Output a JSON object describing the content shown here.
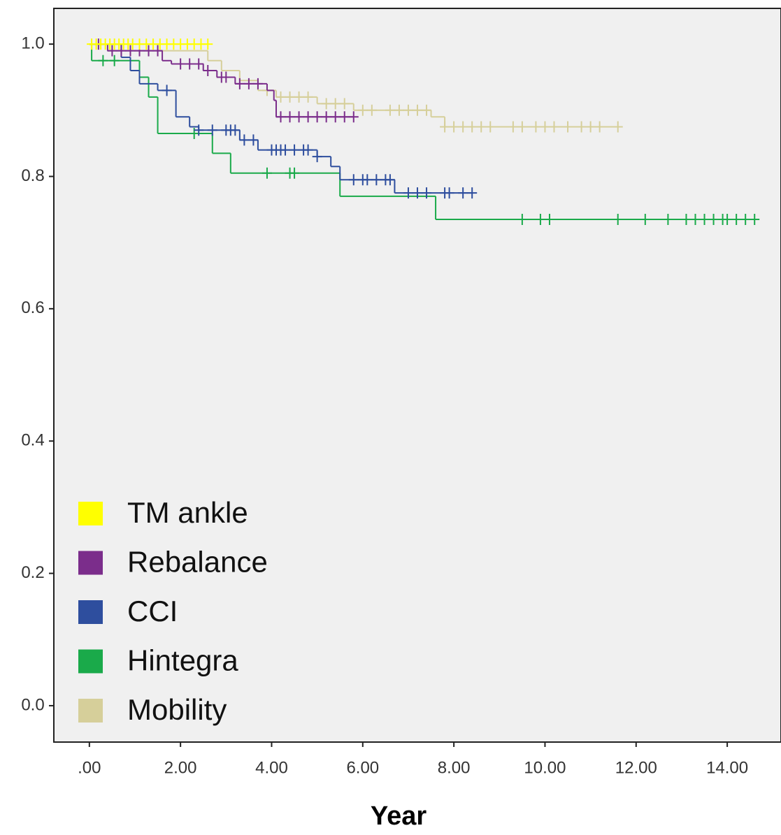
{
  "chart_data": {
    "type": "km",
    "xlabel": "Year",
    "xlim": [
      -0.78,
      15.18
    ],
    "ylim": [
      -0.055,
      1.054
    ],
    "xticks": [
      {
        "value": 0,
        "label": ".00"
      },
      {
        "value": 2,
        "label": "2.00"
      },
      {
        "value": 4,
        "label": "4.00"
      },
      {
        "value": 6,
        "label": "6.00"
      },
      {
        "value": 8,
        "label": "8.00"
      },
      {
        "value": 10,
        "label": "10.00"
      },
      {
        "value": 12,
        "label": "12.00"
      },
      {
        "value": 14,
        "label": "14.00"
      }
    ],
    "yticks": [
      {
        "value": 0,
        "label": "0.0"
      },
      {
        "value": 0.2,
        "label": "0.2"
      },
      {
        "value": 0.4,
        "label": "0.4"
      },
      {
        "value": 0.6,
        "label": "0.6"
      },
      {
        "value": 0.8,
        "label": "0.8"
      },
      {
        "value": 1,
        "label": "1.0"
      }
    ],
    "legend": "lower left",
    "series": [
      {
        "name": "TM ankle",
        "color": "#ffff00",
        "x": [
          0,
          2.6
        ],
        "values": [
          1.0,
          1.0
        ],
        "censored": [
          0.05,
          0.15,
          0.25,
          0.35,
          0.45,
          0.55,
          0.65,
          0.75,
          0.85,
          0.95,
          1.1,
          1.25,
          1.4,
          1.55,
          1.7,
          1.85,
          2.0,
          2.15,
          2.3,
          2.45,
          2.6
        ]
      },
      {
        "name": "Rebalance",
        "color": "#7b2d8b",
        "x": [
          0,
          0.4,
          1.6,
          1.8,
          2.5,
          2.8,
          3.2,
          3.9,
          4.05,
          4.1,
          5.8
        ],
        "values": [
          1.0,
          0.99,
          0.975,
          0.97,
          0.96,
          0.95,
          0.94,
          0.93,
          0.915,
          0.89,
          0.89
        ],
        "censored": [
          0.2,
          0.5,
          0.7,
          0.9,
          1.1,
          1.3,
          1.5,
          2.0,
          2.2,
          2.4,
          2.6,
          2.9,
          3.0,
          3.3,
          3.5,
          3.7,
          4.2,
          4.4,
          4.6,
          4.8,
          5.0,
          5.2,
          5.4,
          5.6,
          5.8
        ]
      },
      {
        "name": "CCI",
        "color": "#2e4e9e",
        "x": [
          0,
          0.7,
          0.9,
          1.1,
          1.5,
          1.9,
          2.2,
          2.4,
          3.3,
          3.7,
          5.0,
          5.3,
          5.5,
          6.7,
          8.4
        ],
        "values": [
          1.0,
          0.98,
          0.96,
          0.94,
          0.93,
          0.89,
          0.875,
          0.87,
          0.855,
          0.84,
          0.83,
          0.815,
          0.795,
          0.775,
          0.775
        ],
        "censored": [
          1.7,
          2.4,
          2.7,
          3.0,
          3.1,
          3.2,
          3.4,
          3.6,
          4.0,
          4.1,
          4.2,
          4.3,
          4.5,
          4.7,
          4.8,
          5.0,
          5.8,
          6.0,
          6.1,
          6.3,
          6.5,
          6.6,
          7.0,
          7.2,
          7.4,
          7.8,
          7.9,
          8.2,
          8.4
        ]
      },
      {
        "name": "Hintegra",
        "color": "#1aaa4a",
        "x": [
          0,
          0.05,
          1.1,
          1.3,
          1.5,
          2.7,
          3.1,
          5.5,
          7.6,
          14.6
        ],
        "values": [
          1.0,
          0.975,
          0.95,
          0.92,
          0.865,
          0.835,
          0.805,
          0.77,
          0.735,
          0.735
        ],
        "censored": [
          0.3,
          0.55,
          2.3,
          3.9,
          4.4,
          4.5,
          9.5,
          9.9,
          10.1,
          11.6,
          12.2,
          12.7,
          13.1,
          13.3,
          13.5,
          13.7,
          13.9,
          14.0,
          14.2,
          14.4,
          14.6
        ]
      },
      {
        "name": "Mobility",
        "color": "#d6cf9a",
        "x": [
          0,
          1.5,
          2.6,
          2.9,
          3.3,
          3.7,
          4.1,
          5.0,
          5.8,
          7.5,
          7.8,
          11.6
        ],
        "values": [
          1.0,
          0.99,
          0.975,
          0.96,
          0.945,
          0.93,
          0.92,
          0.91,
          0.9,
          0.89,
          0.875,
          0.875
        ],
        "censored": [
          3.9,
          4.2,
          4.4,
          4.6,
          4.8,
          5.2,
          5.4,
          5.6,
          6.0,
          6.2,
          6.6,
          6.8,
          7.0,
          7.2,
          7.4,
          7.8,
          8.0,
          8.2,
          8.4,
          8.6,
          8.8,
          9.3,
          9.5,
          9.8,
          10.0,
          10.2,
          10.5,
          10.8,
          11.0,
          11.2,
          11.6
        ]
      }
    ]
  }
}
